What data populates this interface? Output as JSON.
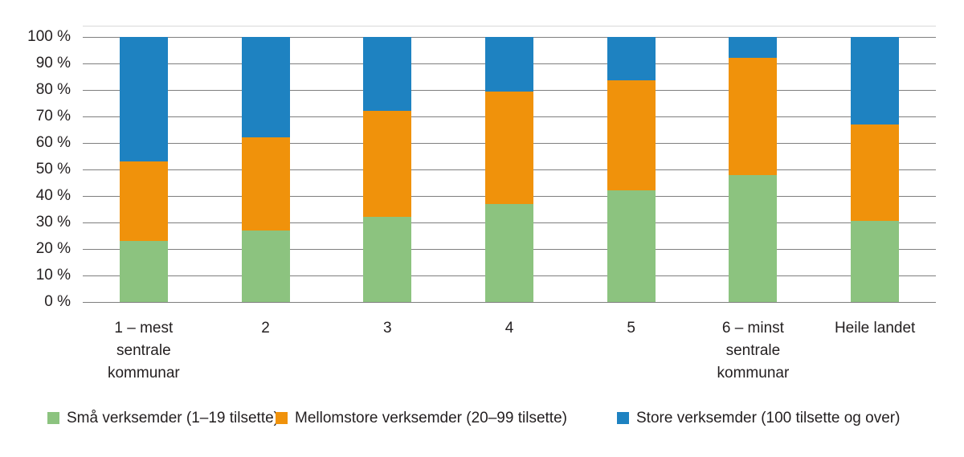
{
  "chart_data": {
    "type": "bar",
    "stacked": true,
    "orientation": "vertical",
    "title": "",
    "categories": [
      "1 – mest\nsentrale\nkommunar",
      "2",
      "3",
      "4",
      "5",
      "6 – minst\nsentrale\nkommunar",
      "Heile landet"
    ],
    "series": [
      {
        "name": "Små verksemder (1–19 tilsette)",
        "color": "#8CC37F",
        "values": [
          23,
          27,
          32,
          37,
          42,
          48,
          30.5
        ]
      },
      {
        "name": "Mellomstore verksemder (20–99 tilsette)",
        "color": "#F0920B",
        "values": [
          30,
          35,
          40,
          42.5,
          41.5,
          44,
          36.5
        ]
      },
      {
        "name": "Store verksemder (100 tilsette og over)",
        "color": "#1E82C1",
        "values": [
          47,
          38,
          28,
          20.5,
          16.5,
          8,
          33
        ]
      }
    ],
    "y_axis": {
      "min": 0,
      "max": 100,
      "step": 10,
      "tick_labels": [
        "0 %",
        "10 %",
        "20 %",
        "30 %",
        "40 %",
        "50 %",
        "60 %",
        "70 %",
        "80 %",
        "90 %",
        "100 %"
      ]
    },
    "xlabel": "",
    "ylabel": "",
    "grid": true,
    "legend_position": "bottom"
  },
  "colors": {
    "background": "#FFFFFF",
    "gridline": "#7F7F7F",
    "frame_top": "#D9D9D9",
    "text": "#231F20"
  }
}
